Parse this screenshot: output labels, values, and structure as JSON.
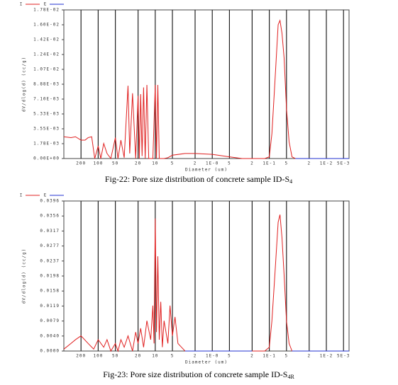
{
  "chart_data": [
    {
      "type": "line",
      "xscale": "log",
      "x_label": "Diameter (um)",
      "y_label": "dV/dlog(d) (cc/g)",
      "caption": "Fig-22: Pore size distribution of concrete sample ID-S",
      "caption_sub": "4",
      "xlim": [
        400,
        0.004
      ],
      "xticks": [
        200,
        100,
        50,
        20,
        10,
        5,
        2,
        {
          "value": 1,
          "label": "1E-0"
        },
        {
          "value": 0.5,
          "label": "5"
        },
        {
          "value": 0.2,
          "label": "2"
        },
        {
          "value": 0.1,
          "label": "1E-1"
        },
        {
          "value": 0.05,
          "label": "5"
        },
        {
          "value": 0.02,
          "label": "2"
        },
        {
          "value": 0.01,
          "label": "1E-2"
        },
        {
          "value": 0.005,
          "label": "5E-3"
        }
      ],
      "ylim": [
        0,
        0.01776
      ],
      "yticks": [
        {
          "value": 0,
          "label": "0.00E+00"
        },
        {
          "value": 0.001776,
          "label": "1.78E-03"
        },
        {
          "value": 0.003552,
          "label": "3.55E-03"
        },
        {
          "value": 0.005328,
          "label": "5.33E-03"
        },
        {
          "value": 0.007104,
          "label": "7.10E-03"
        },
        {
          "value": 0.00888,
          "label": "8.88E-03"
        },
        {
          "value": 0.010656,
          "label": "1.07E-02"
        },
        {
          "value": 0.012432,
          "label": "1.24E-02"
        },
        {
          "value": 0.014208,
          "label": "1.42E-02"
        },
        {
          "value": 0.015984,
          "label": "1.60E-02"
        },
        {
          "value": 0.01776,
          "label": "1.78E-02"
        }
      ],
      "grid": true,
      "series": [
        {
          "name": "I",
          "color": "#e02020",
          "x": [
            400,
            300,
            250,
            200,
            170,
            150,
            130,
            115,
            100,
            90,
            80,
            70,
            60,
            50,
            45,
            40,
            35,
            30,
            28,
            25,
            22,
            20,
            19,
            18,
            17,
            16,
            15,
            14,
            13,
            12,
            11,
            10,
            9.5,
            9,
            8.5,
            8,
            7,
            6,
            5,
            3,
            2,
            1,
            0.5,
            0.3,
            0.2,
            0.15,
            0.12,
            0.1,
            0.09,
            0.08,
            0.07,
            0.065,
            0.06,
            0.055,
            0.05,
            0.045,
            0.04,
            0.035
          ],
          "values": [
            0.0026,
            0.0025,
            0.0026,
            0.0022,
            0.0022,
            0.0025,
            0.0026,
            0,
            0.0015,
            0,
            0.0018,
            0.0006,
            0,
            0.0025,
            0,
            0.0022,
            0.0001,
            0.0087,
            0.0006,
            0.0078,
            0,
            0.0075,
            0,
            0.0077,
            0.0003,
            0.0085,
            0,
            0.0088,
            0,
            0,
            0,
            0.0088,
            0,
            0.0088,
            0,
            0,
            0,
            0.0001,
            0.0004,
            0.0006,
            0.0006,
            0.0005,
            0.0002,
            0,
            0,
            0,
            0,
            0.0002,
            0.003,
            0.009,
            0.016,
            0.0165,
            0.015,
            0.012,
            0.006,
            0.002,
            0.0002,
            0
          ]
        },
        {
          "name": "E",
          "color": "#2030d0",
          "x": [
            0.035,
            0.004
          ],
          "values": [
            0,
            0
          ]
        }
      ]
    },
    {
      "type": "line",
      "xscale": "log",
      "x_label": "Diameter (um)",
      "y_label": "dV/dlog(d) (cc/g)",
      "caption": "Fig-23: Pore size distribution of concrete sample ID-S",
      "caption_sub": "4R",
      "xlim": [
        400,
        0.004
      ],
      "xticks": [
        200,
        100,
        50,
        20,
        10,
        5,
        2,
        {
          "value": 1,
          "label": "1E-0"
        },
        {
          "value": 0.5,
          "label": "5"
        },
        {
          "value": 0.2,
          "label": "2"
        },
        {
          "value": 0.1,
          "label": "1E-1"
        },
        {
          "value": 0.05,
          "label": "5"
        },
        {
          "value": 0.02,
          "label": "2"
        },
        {
          "value": 0.01,
          "label": "1E-2"
        },
        {
          "value": 0.005,
          "label": "5E-3"
        }
      ],
      "ylim": [
        0,
        0.0396
      ],
      "yticks": [
        {
          "value": 0,
          "label": "0.0000"
        },
        {
          "value": 0.00396,
          "label": "0.0040"
        },
        {
          "value": 0.00792,
          "label": "0.0079"
        },
        {
          "value": 0.01188,
          "label": "0.0119"
        },
        {
          "value": 0.01584,
          "label": "0.0158"
        },
        {
          "value": 0.0198,
          "label": "0.0198"
        },
        {
          "value": 0.02376,
          "label": "0.0237"
        },
        {
          "value": 0.02772,
          "label": "0.0277"
        },
        {
          "value": 0.03168,
          "label": "0.0317"
        },
        {
          "value": 0.03564,
          "label": "0.0356"
        },
        {
          "value": 0.0396,
          "label": "0.0396"
        }
      ],
      "grid": true,
      "series": [
        {
          "name": "I",
          "color": "#e02020",
          "x": [
            400,
            300,
            250,
            200,
            150,
            120,
            100,
            80,
            70,
            60,
            50,
            45,
            40,
            35,
            30,
            25,
            22,
            20,
            18,
            16,
            14,
            12,
            11,
            10.5,
            10,
            9.5,
            9,
            8.5,
            8,
            7.5,
            7,
            6,
            5.5,
            5,
            4.5,
            4,
            3,
            1,
            0.2,
            0.12,
            0.1,
            0.09,
            0.08,
            0.07,
            0.065,
            0.06,
            0.055,
            0.05,
            0.045,
            0.04
          ],
          "values": [
            0.0005,
            0.002,
            0.003,
            0.004,
            0.002,
            0.0005,
            0.003,
            0.001,
            0.003,
            0,
            0.002,
            0,
            0.003,
            0.001,
            0.004,
            0,
            0.005,
            0.002,
            0.006,
            0.001,
            0.008,
            0.003,
            0.012,
            0.002,
            0.035,
            0.005,
            0.025,
            0.003,
            0.013,
            0.001,
            0.008,
            0.002,
            0.012,
            0.004,
            0.009,
            0.002,
            0,
            0,
            0,
            0,
            0.001,
            0.008,
            0.02,
            0.034,
            0.036,
            0.03,
            0.02,
            0.008,
            0.002,
            0
          ]
        },
        {
          "name": "E",
          "color": "#2030d0",
          "x": [
            3,
            0.2,
            0.15,
            0.04,
            0.004
          ],
          "values": [
            0,
            0,
            null,
            0,
            0
          ]
        }
      ]
    }
  ]
}
